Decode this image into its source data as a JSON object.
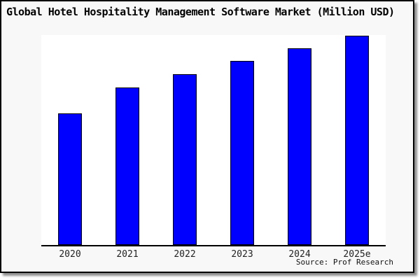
{
  "title": "Global Hotel Hospitality Management Software Market (Million USD)",
  "source_credit": "Source: Prof Research",
  "colors": {
    "bar_fill": "#0000ff",
    "bar_border": "#000000",
    "frame_background": "#f8f8f8",
    "plot_background": "#ffffff",
    "axis": "#000000",
    "shadow": "#8f8f8f"
  },
  "chart_data": {
    "type": "bar",
    "title": "Global Hotel Hospitality Management Software Market (Million USD)",
    "categories": [
      "2020",
      "2021",
      "2022",
      "2023",
      "2024",
      "2025e"
    ],
    "values": [
      188,
      225,
      244,
      263,
      281,
      299
    ],
    "value_note": "y-axis has no ticks or labels; values are relative magnitudes estimated from bar heights (arbitrary units, max scaled to 300)",
    "xlabel": "",
    "ylabel": "",
    "ylim": [
      0,
      300
    ],
    "grid": false,
    "legend": false,
    "annotations": [
      "Source: Prof Research"
    ]
  }
}
